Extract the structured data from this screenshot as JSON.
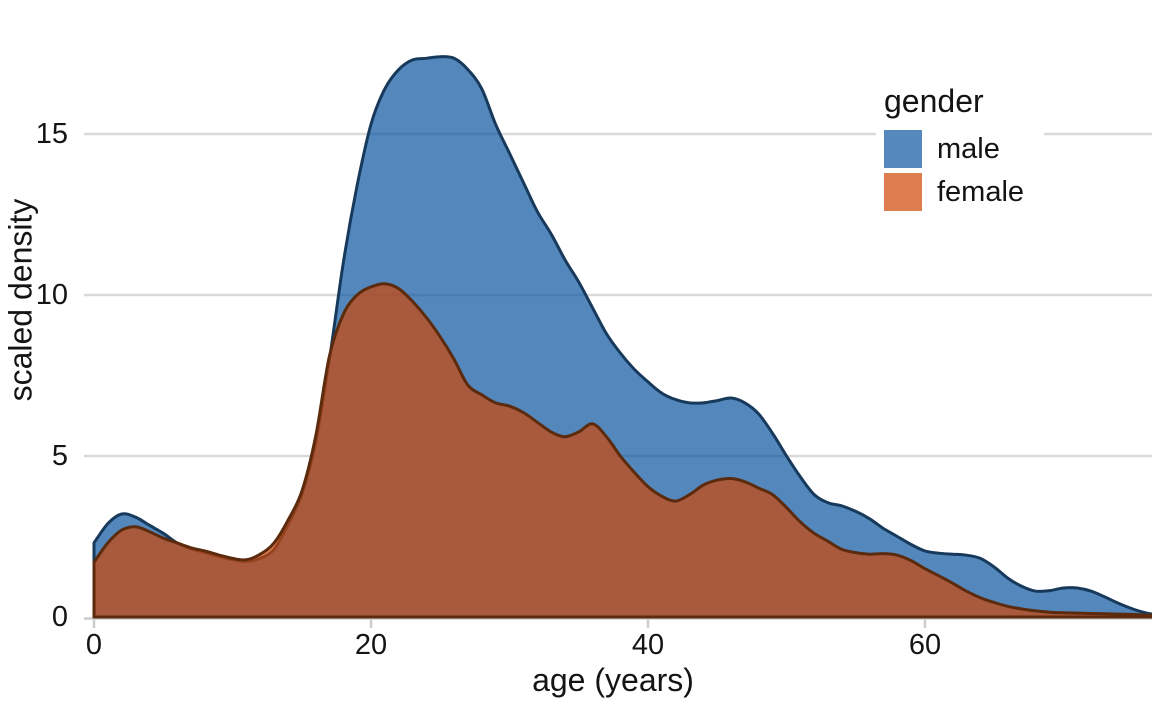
{
  "chart_data": {
    "type": "area",
    "variant": "overlapping-density",
    "title": "",
    "xlabel": "age (years)",
    "ylabel": "scaled density",
    "legend_title": "gender",
    "legend_position": "upper-right-inside",
    "grid": "horizontal",
    "xlim": [
      0,
      77
    ],
    "ylim": [
      0,
      18
    ],
    "x_ticks": [
      0,
      20,
      40,
      60
    ],
    "x_tick_labels": [
      "0",
      "20",
      "40",
      "60"
    ],
    "y_ticks": [
      0,
      5,
      10,
      15
    ],
    "y_tick_labels": [
      "0",
      "5",
      "10",
      "15"
    ],
    "y_gridlines": [
      5,
      10,
      15
    ],
    "x": [
      0,
      1,
      2,
      3,
      4,
      5,
      6,
      7,
      8,
      9,
      10,
      11,
      12,
      13,
      14,
      15,
      16,
      17,
      18,
      19,
      20,
      21,
      22,
      23,
      24,
      25,
      26,
      27,
      28,
      29,
      30,
      31,
      32,
      33,
      34,
      35,
      36,
      37,
      38,
      39,
      40,
      41,
      42,
      43,
      44,
      45,
      46,
      47,
      48,
      49,
      50,
      51,
      52,
      53,
      54,
      55,
      56,
      57,
      58,
      59,
      60,
      61,
      62,
      63,
      64,
      65,
      66,
      67,
      68,
      69,
      70,
      71,
      72,
      73,
      74,
      75,
      76,
      77
    ],
    "series": [
      {
        "name": "male",
        "swatch": "#5589bd",
        "fill_rgba": "rgba(12,86,161,0.70)",
        "stroke": "#173a5c",
        "peak": {
          "x": 25,
          "y": 17.4
        },
        "values": [
          2.3,
          2.9,
          3.2,
          3.1,
          2.85,
          2.6,
          2.3,
          2.12,
          2.0,
          1.88,
          1.78,
          1.72,
          1.82,
          2.1,
          2.85,
          3.8,
          5.4,
          8.0,
          11.0,
          13.4,
          15.3,
          16.4,
          17.0,
          17.3,
          17.35,
          17.4,
          17.35,
          17.0,
          16.4,
          15.3,
          14.4,
          13.5,
          12.6,
          11.9,
          11.1,
          10.4,
          9.6,
          8.8,
          8.2,
          7.7,
          7.3,
          6.95,
          6.75,
          6.65,
          6.65,
          6.72,
          6.8,
          6.65,
          6.3,
          5.7,
          5.0,
          4.35,
          3.8,
          3.55,
          3.45,
          3.28,
          3.05,
          2.75,
          2.5,
          2.25,
          2.05,
          1.98,
          1.95,
          1.92,
          1.82,
          1.55,
          1.2,
          0.95,
          0.8,
          0.82,
          0.9,
          0.9,
          0.8,
          0.62,
          0.42,
          0.25,
          0.12,
          0.06
        ]
      },
      {
        "name": "female",
        "swatch": "#de7e50",
        "fill_rgba": "rgba(207,71,5,0.70)",
        "stroke": "#5c2b0d",
        "peak": {
          "x": 21,
          "y": 10.35
        },
        "values": [
          1.7,
          2.3,
          2.7,
          2.8,
          2.65,
          2.45,
          2.3,
          2.15,
          2.05,
          1.93,
          1.82,
          1.78,
          1.95,
          2.3,
          3.0,
          3.9,
          5.6,
          8.1,
          9.4,
          10.0,
          10.25,
          10.35,
          10.2,
          9.8,
          9.3,
          8.7,
          8.0,
          7.2,
          6.9,
          6.65,
          6.55,
          6.35,
          6.05,
          5.75,
          5.6,
          5.75,
          6.0,
          5.6,
          5.0,
          4.5,
          4.05,
          3.75,
          3.6,
          3.8,
          4.1,
          4.25,
          4.3,
          4.2,
          4.0,
          3.8,
          3.4,
          2.95,
          2.6,
          2.35,
          2.1,
          2.0,
          1.95,
          1.97,
          1.92,
          1.75,
          1.5,
          1.28,
          1.05,
          0.8,
          0.6,
          0.45,
          0.33,
          0.25,
          0.19,
          0.15,
          0.13,
          0.12,
          0.11,
          0.1,
          0.09,
          0.08,
          0.06,
          0.05
        ]
      }
    ]
  },
  "colors": {
    "background": "#ffffff",
    "gridline": "#d9d9d9",
    "axis": "#cccccc",
    "text": "#141414"
  }
}
